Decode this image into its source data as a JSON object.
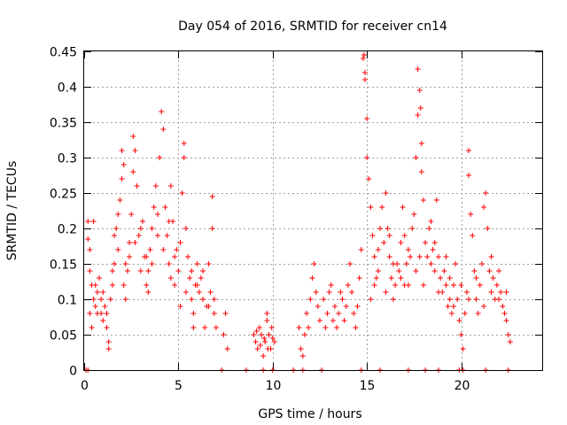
{
  "chart_data": {
    "type": "scatter",
    "title": "Day 054 of 2016, SRMTID for receiver cn14",
    "xlabel": "GPS time / hours",
    "ylabel": "SRMTID / TECUs",
    "xlim": [
      0,
      24.3
    ],
    "ylim": [
      0,
      0.45
    ],
    "x_ticks": [
      0,
      5,
      10,
      15,
      20
    ],
    "x_tick_labels": [
      "0",
      "5",
      "10",
      "15",
      "20"
    ],
    "y_ticks": [
      0,
      0.05,
      0.1,
      0.15,
      0.2,
      0.25,
      0.3,
      0.35,
      0.4,
      0.45
    ],
    "y_tick_labels": [
      "0",
      "0.05",
      "0.1",
      "0.15",
      "0.2",
      "0.25",
      "0.3",
      "0.35",
      "0.4",
      "0.45"
    ],
    "grid": true,
    "marker": "+",
    "color": "#ff0000",
    "series": [
      {
        "name": "SRMTID",
        "points": [
          [
            0.1,
            0
          ],
          [
            0.2,
            0
          ],
          [
            7.3,
            0
          ],
          [
            8.6,
            0
          ],
          [
            9.5,
            0
          ],
          [
            10,
            0
          ],
          [
            11.1,
            0
          ],
          [
            11.6,
            0
          ],
          [
            12.6,
            0
          ],
          [
            14.7,
            0
          ],
          [
            15.7,
            0
          ],
          [
            17.2,
            0
          ],
          [
            18.1,
            0
          ],
          [
            18.8,
            0
          ],
          [
            19.9,
            0
          ],
          [
            20.1,
            0
          ],
          [
            21.3,
            0
          ],
          [
            22.5,
            0
          ],
          [
            0.2,
            0.21
          ],
          [
            0.2,
            0.185
          ],
          [
            0.3,
            0.17
          ],
          [
            0.5,
            0.21
          ],
          [
            0.3,
            0.14
          ],
          [
            0.4,
            0.12
          ],
          [
            0.5,
            0.1
          ],
          [
            0.6,
            0.09
          ],
          [
            0.7,
            0.11
          ],
          [
            0.8,
            0.13
          ],
          [
            0.9,
            0.08
          ],
          [
            1.0,
            0.07
          ],
          [
            1.1,
            0.09
          ],
          [
            1.2,
            0.06
          ],
          [
            1.3,
            0.04
          ],
          [
            1.3,
            0.03
          ],
          [
            1.4,
            0.1
          ],
          [
            1.5,
            0.12
          ],
          [
            1.6,
            0.15
          ],
          [
            1.6,
            0.19
          ],
          [
            1.7,
            0.2
          ],
          [
            1.8,
            0.22
          ],
          [
            1.9,
            0.24
          ],
          [
            2.0,
            0.27
          ],
          [
            2.0,
            0.31
          ],
          [
            2.1,
            0.29
          ],
          [
            2.2,
            0.15
          ],
          [
            2.3,
            0.14
          ],
          [
            2.4,
            0.18
          ],
          [
            2.5,
            0.22
          ],
          [
            2.6,
            0.28
          ],
          [
            2.6,
            0.33
          ],
          [
            2.7,
            0.31
          ],
          [
            2.8,
            0.26
          ],
          [
            2.9,
            0.19
          ],
          [
            3.0,
            0.14
          ],
          [
            3.1,
            0.21
          ],
          [
            3.2,
            0.16
          ],
          [
            3.3,
            0.12
          ],
          [
            3.4,
            0.14
          ],
          [
            3.5,
            0.17
          ],
          [
            3.6,
            0.2
          ],
          [
            3.7,
            0.23
          ],
          [
            3.8,
            0.26
          ],
          [
            3.9,
            0.19
          ],
          [
            4.0,
            0.3
          ],
          [
            4.1,
            0.365
          ],
          [
            4.2,
            0.34
          ],
          [
            4.3,
            0.23
          ],
          [
            4.4,
            0.19
          ],
          [
            4.5,
            0.15
          ],
          [
            4.6,
            0.26
          ],
          [
            4.7,
            0.21
          ],
          [
            4.8,
            0.12
          ],
          [
            4.9,
            0.17
          ],
          [
            5.0,
            0.14
          ],
          [
            5.1,
            0.09
          ],
          [
            5.2,
            0.25
          ],
          [
            5.3,
            0.3
          ],
          [
            5.3,
            0.32
          ],
          [
            5.4,
            0.2
          ],
          [
            5.5,
            0.16
          ],
          [
            5.6,
            0.13
          ],
          [
            5.7,
            0.1
          ],
          [
            5.8,
            0.08
          ],
          [
            5.9,
            0.12
          ],
          [
            6.0,
            0.15
          ],
          [
            6.1,
            0.11
          ],
          [
            6.2,
            0.13
          ],
          [
            6.3,
            0.1
          ],
          [
            6.4,
            0.06
          ],
          [
            6.5,
            0.09
          ],
          [
            6.6,
            0.15
          ],
          [
            6.7,
            0.11
          ],
          [
            6.8,
            0.2
          ],
          [
            6.8,
            0.245
          ],
          [
            6.9,
            0.08
          ],
          [
            7.0,
            0.06
          ],
          [
            7.4,
            0.05
          ],
          [
            7.5,
            0.08
          ],
          [
            7.6,
            0.03
          ],
          [
            0.3,
            0.08
          ],
          [
            0.6,
            0.12
          ],
          [
            0.9,
            0.1
          ],
          [
            1.2,
            0.08
          ],
          [
            1.5,
            0.14
          ],
          [
            1.8,
            0.17
          ],
          [
            2.1,
            0.12
          ],
          [
            2.4,
            0.16
          ],
          [
            2.7,
            0.18
          ],
          [
            3.0,
            0.2
          ],
          [
            3.3,
            0.16
          ],
          [
            3.6,
            0.15
          ],
          [
            3.9,
            0.22
          ],
          [
            4.2,
            0.17
          ],
          [
            4.5,
            0.21
          ],
          [
            4.8,
            0.16
          ],
          [
            5.1,
            0.18
          ],
          [
            5.4,
            0.11
          ],
          [
            5.7,
            0.14
          ],
          [
            6.0,
            0.12
          ],
          [
            6.3,
            0.14
          ],
          [
            6.6,
            0.09
          ],
          [
            6.9,
            0.1
          ],
          [
            0.4,
            0.06
          ],
          [
            0.7,
            0.08
          ],
          [
            1.0,
            0.11
          ],
          [
            2.2,
            0.1
          ],
          [
            3.4,
            0.11
          ],
          [
            4.6,
            0.13
          ],
          [
            5.8,
            0.06
          ],
          [
            9.0,
            0.05
          ],
          [
            9.1,
            0.04
          ],
          [
            9.2,
            0.03
          ],
          [
            9.3,
            0.06
          ],
          [
            9.4,
            0.05
          ],
          [
            9.5,
            0.02
          ],
          [
            9.6,
            0.04
          ],
          [
            9.7,
            0.07
          ],
          [
            9.7,
            0.08
          ],
          [
            9.8,
            0.05
          ],
          [
            9.9,
            0.03
          ],
          [
            10.0,
            0.045
          ],
          [
            10.1,
            0.04
          ],
          [
            9.15,
            0.055
          ],
          [
            9.35,
            0.035
          ],
          [
            9.55,
            0.045
          ],
          [
            9.75,
            0.03
          ],
          [
            9.95,
            0.06
          ],
          [
            11.4,
            0.06
          ],
          [
            11.5,
            0.03
          ],
          [
            11.6,
            0.02
          ],
          [
            11.7,
            0.05
          ],
          [
            11.8,
            0.08
          ],
          [
            11.9,
            0.06
          ],
          [
            12.0,
            0.1
          ],
          [
            12.1,
            0.13
          ],
          [
            12.2,
            0.15
          ],
          [
            12.3,
            0.11
          ],
          [
            12.4,
            0.09
          ],
          [
            12.5,
            0.07
          ],
          [
            12.7,
            0.1
          ],
          [
            12.8,
            0.06
          ],
          [
            12.9,
            0.08
          ],
          [
            13.0,
            0.11
          ],
          [
            13.1,
            0.12
          ],
          [
            13.2,
            0.07
          ],
          [
            13.3,
            0.09
          ],
          [
            13.4,
            0.06
          ],
          [
            13.5,
            0.08
          ],
          [
            13.6,
            0.11
          ],
          [
            13.7,
            0.1
          ],
          [
            13.8,
            0.07
          ],
          [
            13.9,
            0.09
          ],
          [
            14.0,
            0.12
          ],
          [
            14.1,
            0.15
          ],
          [
            14.2,
            0.11
          ],
          [
            14.3,
            0.08
          ],
          [
            14.4,
            0.06
          ],
          [
            14.5,
            0.09
          ],
          [
            14.6,
            0.13
          ],
          [
            14.7,
            0.17
          ],
          [
            14.8,
            0.44
          ],
          [
            14.85,
            0.445
          ],
          [
            14.9,
            0.42
          ],
          [
            14.9,
            0.41
          ],
          [
            15.0,
            0.355
          ],
          [
            15.0,
            0.3
          ],
          [
            15.1,
            0.27
          ],
          [
            15.2,
            0.23
          ],
          [
            15.3,
            0.19
          ],
          [
            15.4,
            0.16
          ],
          [
            15.5,
            0.13
          ],
          [
            15.6,
            0.14
          ],
          [
            15.7,
            0.2
          ],
          [
            15.8,
            0.23
          ],
          [
            15.9,
            0.18
          ],
          [
            16.0,
            0.25
          ],
          [
            16.1,
            0.2
          ],
          [
            16.2,
            0.16
          ],
          [
            16.3,
            0.13
          ],
          [
            16.4,
            0.1
          ],
          [
            16.5,
            0.12
          ],
          [
            16.6,
            0.15
          ],
          [
            16.7,
            0.14
          ],
          [
            16.8,
            0.18
          ],
          [
            16.9,
            0.23
          ],
          [
            17.0,
            0.19
          ],
          [
            17.1,
            0.15
          ],
          [
            17.2,
            0.12
          ],
          [
            17.3,
            0.16
          ],
          [
            17.4,
            0.2
          ],
          [
            17.5,
            0.22
          ],
          [
            17.6,
            0.3
          ],
          [
            17.7,
            0.36
          ],
          [
            17.7,
            0.425
          ],
          [
            17.8,
            0.395
          ],
          [
            17.85,
            0.37
          ],
          [
            17.9,
            0.32
          ],
          [
            17.9,
            0.28
          ],
          [
            18.0,
            0.24
          ],
          [
            18.1,
            0.18
          ],
          [
            18.2,
            0.16
          ],
          [
            18.3,
            0.2
          ],
          [
            18.4,
            0.21
          ],
          [
            18.5,
            0.17
          ],
          [
            18.6,
            0.14
          ],
          [
            18.7,
            0.24
          ],
          [
            18.8,
            0.16
          ],
          [
            18.9,
            0.13
          ],
          [
            19.0,
            0.11
          ],
          [
            19.1,
            0.14
          ],
          [
            19.2,
            0.12
          ],
          [
            19.3,
            0.09
          ],
          [
            19.4,
            0.1
          ],
          [
            19.5,
            0.08
          ],
          [
            19.6,
            0.12
          ],
          [
            19.7,
            0.15
          ],
          [
            19.8,
            0.1
          ],
          [
            19.9,
            0.07
          ],
          [
            20.0,
            0.05
          ],
          [
            20.1,
            0.03
          ],
          [
            20.2,
            0.08
          ],
          [
            20.3,
            0.11
          ],
          [
            20.4,
            0.31
          ],
          [
            20.4,
            0.275
          ],
          [
            20.5,
            0.22
          ],
          [
            20.6,
            0.19
          ],
          [
            20.7,
            0.14
          ],
          [
            20.8,
            0.1
          ],
          [
            20.9,
            0.08
          ],
          [
            21.0,
            0.12
          ],
          [
            21.1,
            0.15
          ],
          [
            21.2,
            0.23
          ],
          [
            21.3,
            0.25
          ],
          [
            21.4,
            0.2
          ],
          [
            21.5,
            0.14
          ],
          [
            21.6,
            0.11
          ],
          [
            21.7,
            0.13
          ],
          [
            21.8,
            0.1
          ],
          [
            21.9,
            0.12
          ],
          [
            22.0,
            0.14
          ],
          [
            22.1,
            0.11
          ],
          [
            22.2,
            0.09
          ],
          [
            22.3,
            0.08
          ],
          [
            22.4,
            0.07
          ],
          [
            22.5,
            0.05
          ],
          [
            22.6,
            0.04
          ],
          [
            15.2,
            0.1
          ],
          [
            15.6,
            0.17
          ],
          [
            16.0,
            0.11
          ],
          [
            16.4,
            0.15
          ],
          [
            16.8,
            0.13
          ],
          [
            17.2,
            0.17
          ],
          [
            17.6,
            0.14
          ],
          [
            18.0,
            0.12
          ],
          [
            18.4,
            0.15
          ],
          [
            18.8,
            0.11
          ],
          [
            19.2,
            0.16
          ],
          [
            19.6,
            0.09
          ],
          [
            20.0,
            0.12
          ],
          [
            20.4,
            0.1
          ],
          [
            20.8,
            0.13
          ],
          [
            21.2,
            0.09
          ],
          [
            21.6,
            0.16
          ],
          [
            22.0,
            0.1
          ],
          [
            22.4,
            0.11
          ],
          [
            15.4,
            0.12
          ],
          [
            16.2,
            0.19
          ],
          [
            17.0,
            0.12
          ],
          [
            17.8,
            0.16
          ],
          [
            18.6,
            0.18
          ],
          [
            19.4,
            0.13
          ]
        ]
      }
    ]
  }
}
